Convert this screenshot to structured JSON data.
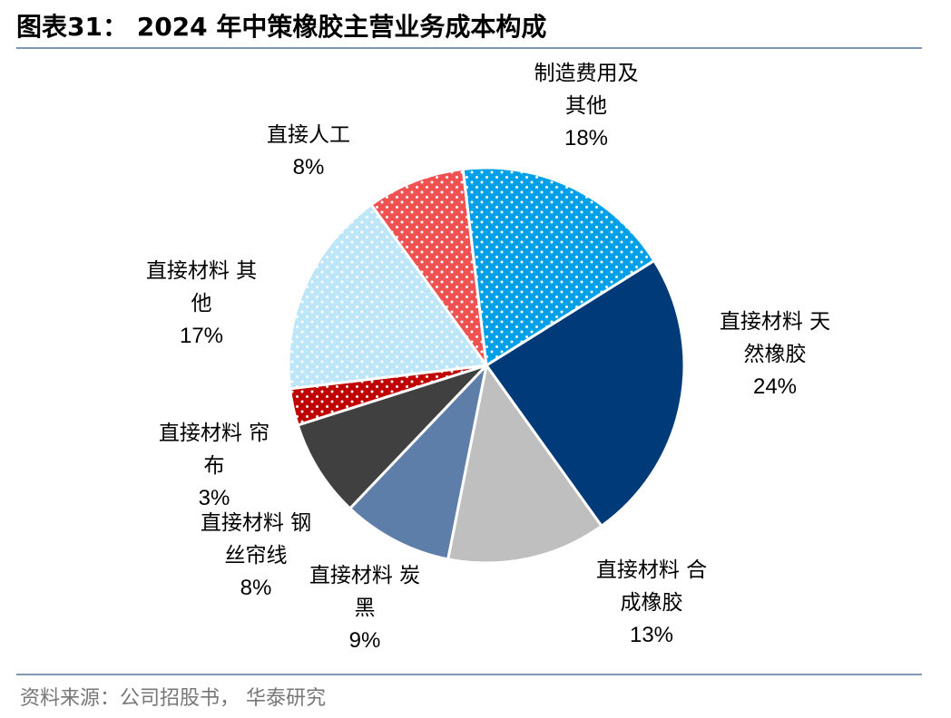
{
  "title": "图表31： 2024 年中策橡胶主营业务成本构成",
  "source": "资料来源：公司招股书， 华泰研究",
  "colors": {
    "rule": "#7f97b2",
    "slice_natural_rubber": "#003a78",
    "slice_synthetic_rubber": "#bfbfbf",
    "slice_carbon_black": "#5d7ea9",
    "slice_steel_cord": "#404040",
    "slice_cord_fabric": "#c00000",
    "slice_other_materials": "#bde6f9",
    "slice_labor": "#f05252",
    "slice_manufacturing": "#00a0e9"
  },
  "chart_data": {
    "type": "pie",
    "title": "2024 年中策橡胶主营业务成本构成",
    "slices": [
      {
        "label_lines": [
          "直接材料 天",
          "然橡胶"
        ],
        "value": 24,
        "value_label": "24%",
        "color": "#003a78",
        "pattern": "none"
      },
      {
        "label_lines": [
          "直接材料 合",
          "成橡胶"
        ],
        "value": 13,
        "value_label": "13%",
        "color": "#bfbfbf",
        "pattern": "none"
      },
      {
        "label_lines": [
          "直接材料 炭",
          "黑"
        ],
        "value": 9,
        "value_label": "9%",
        "color": "#5d7ea9",
        "pattern": "none"
      },
      {
        "label_lines": [
          "直接材料 钢",
          "丝帘线"
        ],
        "value": 8,
        "value_label": "8%",
        "color": "#404040",
        "pattern": "none"
      },
      {
        "label_lines": [
          "直接材料 帘",
          "布"
        ],
        "value": 3,
        "value_label": "3%",
        "color": "#c00000",
        "pattern": "dots"
      },
      {
        "label_lines": [
          "直接材料 其",
          "他"
        ],
        "value": 17,
        "value_label": "17%",
        "color": "#bde6f9",
        "pattern": "dots"
      },
      {
        "label_lines": [
          "直接人工"
        ],
        "value": 8,
        "value_label": "8%",
        "color": "#f05252",
        "pattern": "dots"
      },
      {
        "label_lines": [
          "制造费用及",
          "其他"
        ],
        "value": 18,
        "value_label": "18%",
        "color": "#00a0e9",
        "pattern": "dots"
      }
    ],
    "start_angle_deg": 58,
    "direction": "clockwise",
    "legend": "none"
  }
}
